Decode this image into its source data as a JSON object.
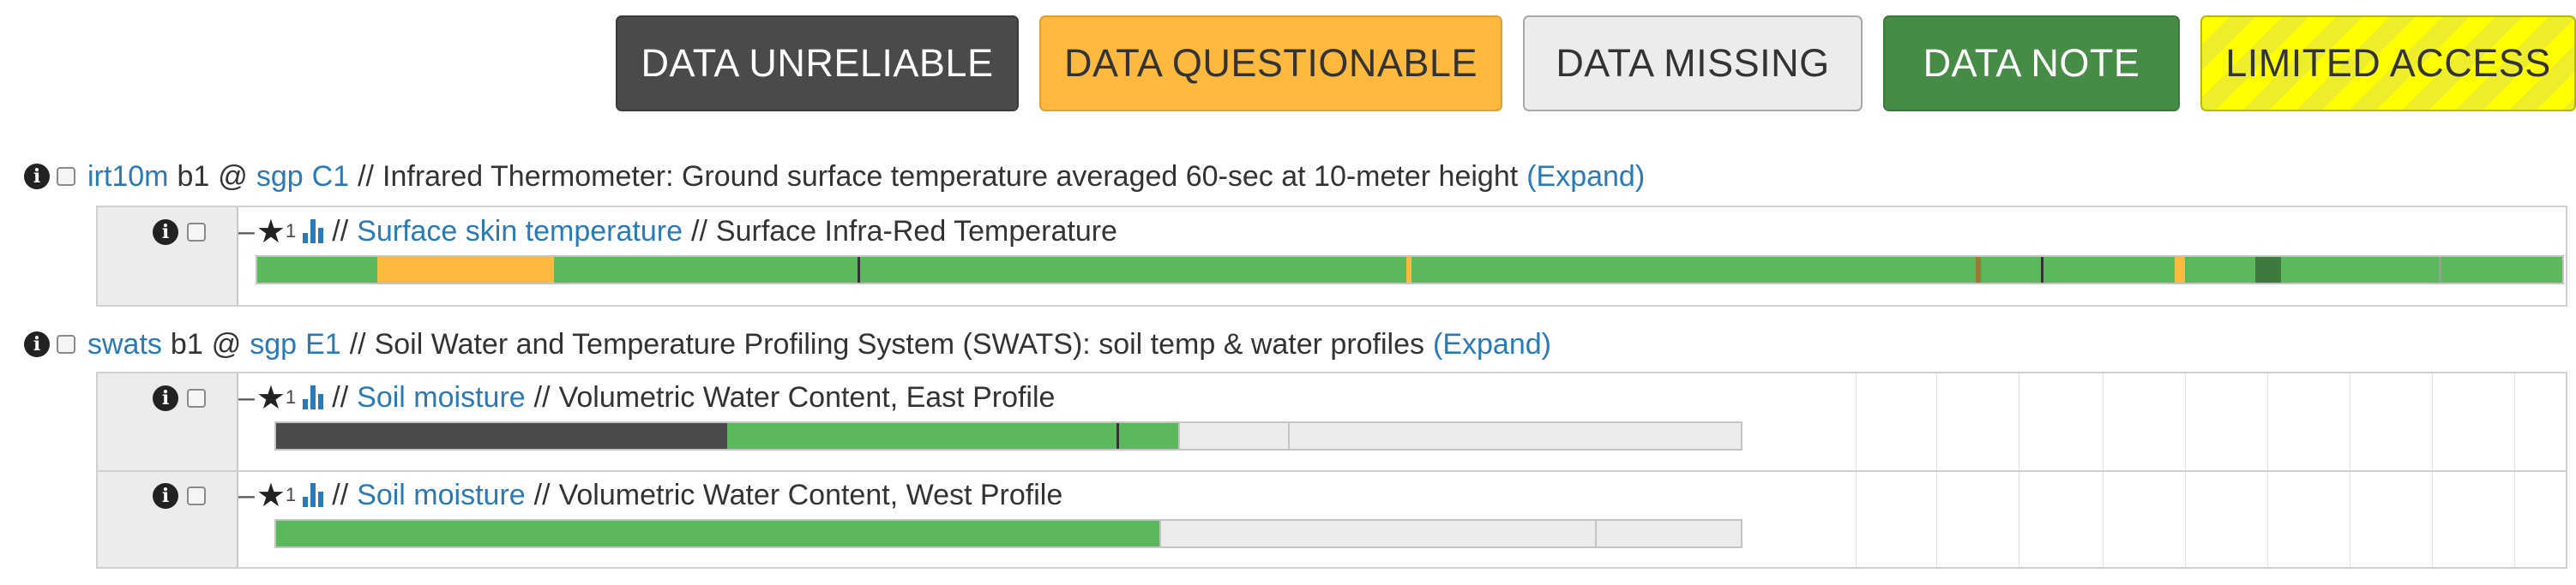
{
  "legend": {
    "unreliable": "DATA UNRELIABLE",
    "questionable": "DATA QUESTIONABLE",
    "missing": "DATA MISSING",
    "note": "DATA NOTE",
    "limited": "LIMITED ACCESS"
  },
  "colors": {
    "good": "#5cb85c",
    "questionable": "#fdb93e",
    "unreliable": "#4a4a4a",
    "note": "#3e7a3e",
    "missing": "#ececec",
    "limited": "#ffff00",
    "link": "#2a7ab8"
  },
  "datasets": [
    {
      "code": "irt10m",
      "level": "b1",
      "at": "@",
      "site": "sgp",
      "facility": "C1",
      "sep": "//",
      "description": "Infrared Thermometer: Ground surface temperature averaged 60-sec at 10-meter height",
      "expand": "(Expand)",
      "variables": [
        {
          "star": "★",
          "star_count": "1",
          "category": "Surface skin temperature",
          "sep": "//",
          "name": "Surface Infra-Red Temperature"
        }
      ]
    },
    {
      "code": "swats",
      "level": "b1",
      "at": "@",
      "site": "sgp",
      "facility": "E1",
      "sep": "//",
      "description": "Soil Water and Temperature Profiling System (SWATS): soil temp & water profiles",
      "expand": "(Expand)",
      "variables": [
        {
          "star": "★",
          "star_count": "1",
          "category": "Soil moisture",
          "sep": "//",
          "name": "Volumetric Water Content, East Profile"
        },
        {
          "star": "★",
          "star_count": "1",
          "category": "Soil moisture",
          "sep": "//",
          "name": "Volumetric Water Content, West Profile"
        }
      ]
    }
  ]
}
